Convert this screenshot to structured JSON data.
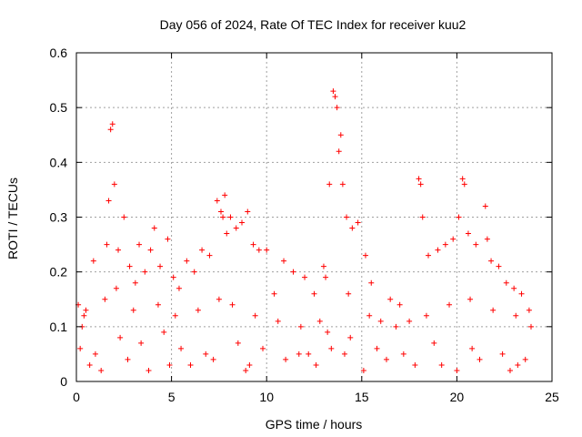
{
  "chart_data": {
    "type": "scatter",
    "title": "Day 056 of 2024, Rate Of TEC Index for receiver kuu2",
    "xlabel": "GPS time / hours",
    "ylabel": "ROTI / TECUs",
    "xlim": [
      0,
      25
    ],
    "ylim": [
      0,
      0.6
    ],
    "xticks": [
      "0",
      "5",
      "10",
      "15",
      "20",
      "25"
    ],
    "yticks": [
      "0",
      "0.1",
      "0.2",
      "0.3",
      "0.4",
      "0.5",
      "0.6"
    ],
    "grid": true,
    "marker": "plus",
    "color": "#ff0000",
    "series": [
      {
        "x": [
          0.1,
          0.3,
          0.5,
          0.9,
          1.6,
          1.7,
          1.8,
          1.9,
          2.0,
          2.2,
          2.5,
          2.8,
          3.1,
          3.3,
          3.6,
          3.9,
          4.1,
          4.4,
          4.8,
          5.1,
          5.4,
          5.8,
          6.2,
          6.6,
          7.0,
          7.4,
          7.6,
          7.7,
          7.8,
          7.9,
          8.1,
          8.4,
          8.7,
          9.0,
          9.3,
          9.6,
          10.0,
          10.4,
          10.9,
          11.4,
          12.0,
          12.5,
          13.0,
          13.3,
          13.5,
          13.6,
          13.7,
          13.8,
          13.9,
          14.0,
          14.2,
          14.5,
          14.8,
          15.2,
          15.5,
          16.0,
          16.5,
          17.0,
          17.5,
          18.0,
          18.1,
          18.2,
          18.5,
          19.0,
          19.4,
          19.8,
          20.1,
          20.3,
          20.4,
          20.6,
          21.0,
          21.5,
          21.6,
          21.8,
          22.2,
          22.6,
          23.0,
          23.4,
          23.8,
          0.2,
          1.0,
          2.3,
          3.4,
          4.6,
          5.5,
          6.8,
          8.5,
          9.8,
          11.0,
          12.2,
          13.2,
          14.4,
          15.8,
          17.2,
          18.8,
          20.8,
          22.4,
          23.6,
          0.7,
          2.7,
          4.9,
          7.2,
          9.1,
          11.7,
          13.4,
          14.1,
          16.3,
          19.2,
          21.2,
          23.2,
          1.3,
          3.8,
          6.0,
          8.9,
          12.6,
          15.1,
          17.8,
          20.0,
          22.8,
          0.4,
          1.5,
          2.1,
          3.0,
          4.3,
          5.2,
          6.4,
          7.5,
          8.2,
          9.4,
          10.6,
          11.8,
          12.8,
          13.1,
          14.3,
          15.4,
          16.8,
          18.4,
          19.6,
          20.7,
          21.9,
          23.1,
          23.9
        ],
        "y": [
          0.14,
          0.1,
          0.13,
          0.22,
          0.25,
          0.33,
          0.46,
          0.47,
          0.36,
          0.24,
          0.3,
          0.21,
          0.18,
          0.25,
          0.2,
          0.24,
          0.28,
          0.21,
          0.26,
          0.19,
          0.17,
          0.22,
          0.2,
          0.24,
          0.23,
          0.33,
          0.31,
          0.3,
          0.34,
          0.27,
          0.3,
          0.28,
          0.29,
          0.31,
          0.25,
          0.24,
          0.24,
          0.16,
          0.22,
          0.2,
          0.19,
          0.16,
          0.21,
          0.36,
          0.53,
          0.52,
          0.5,
          0.42,
          0.45,
          0.36,
          0.3,
          0.28,
          0.29,
          0.23,
          0.18,
          0.11,
          0.15,
          0.14,
          0.11,
          0.37,
          0.36,
          0.3,
          0.23,
          0.24,
          0.25,
          0.26,
          0.3,
          0.37,
          0.36,
          0.27,
          0.25,
          0.32,
          0.26,
          0.22,
          0.21,
          0.18,
          0.17,
          0.16,
          0.13,
          0.06,
          0.05,
          0.08,
          0.07,
          0.09,
          0.06,
          0.05,
          0.07,
          0.06,
          0.04,
          0.05,
          0.09,
          0.08,
          0.06,
          0.05,
          0.07,
          0.06,
          0.05,
          0.04,
          0.03,
          0.04,
          0.03,
          0.04,
          0.03,
          0.05,
          0.06,
          0.05,
          0.04,
          0.03,
          0.04,
          0.03,
          0.02,
          0.02,
          0.03,
          0.02,
          0.03,
          0.02,
          0.03,
          0.02,
          0.02,
          0.12,
          0.15,
          0.17,
          0.13,
          0.14,
          0.12,
          0.13,
          0.15,
          0.14,
          0.12,
          0.11,
          0.1,
          0.11,
          0.19,
          0.16,
          0.12,
          0.1,
          0.12,
          0.14,
          0.15,
          0.13,
          0.12,
          0.1
        ]
      }
    ]
  }
}
